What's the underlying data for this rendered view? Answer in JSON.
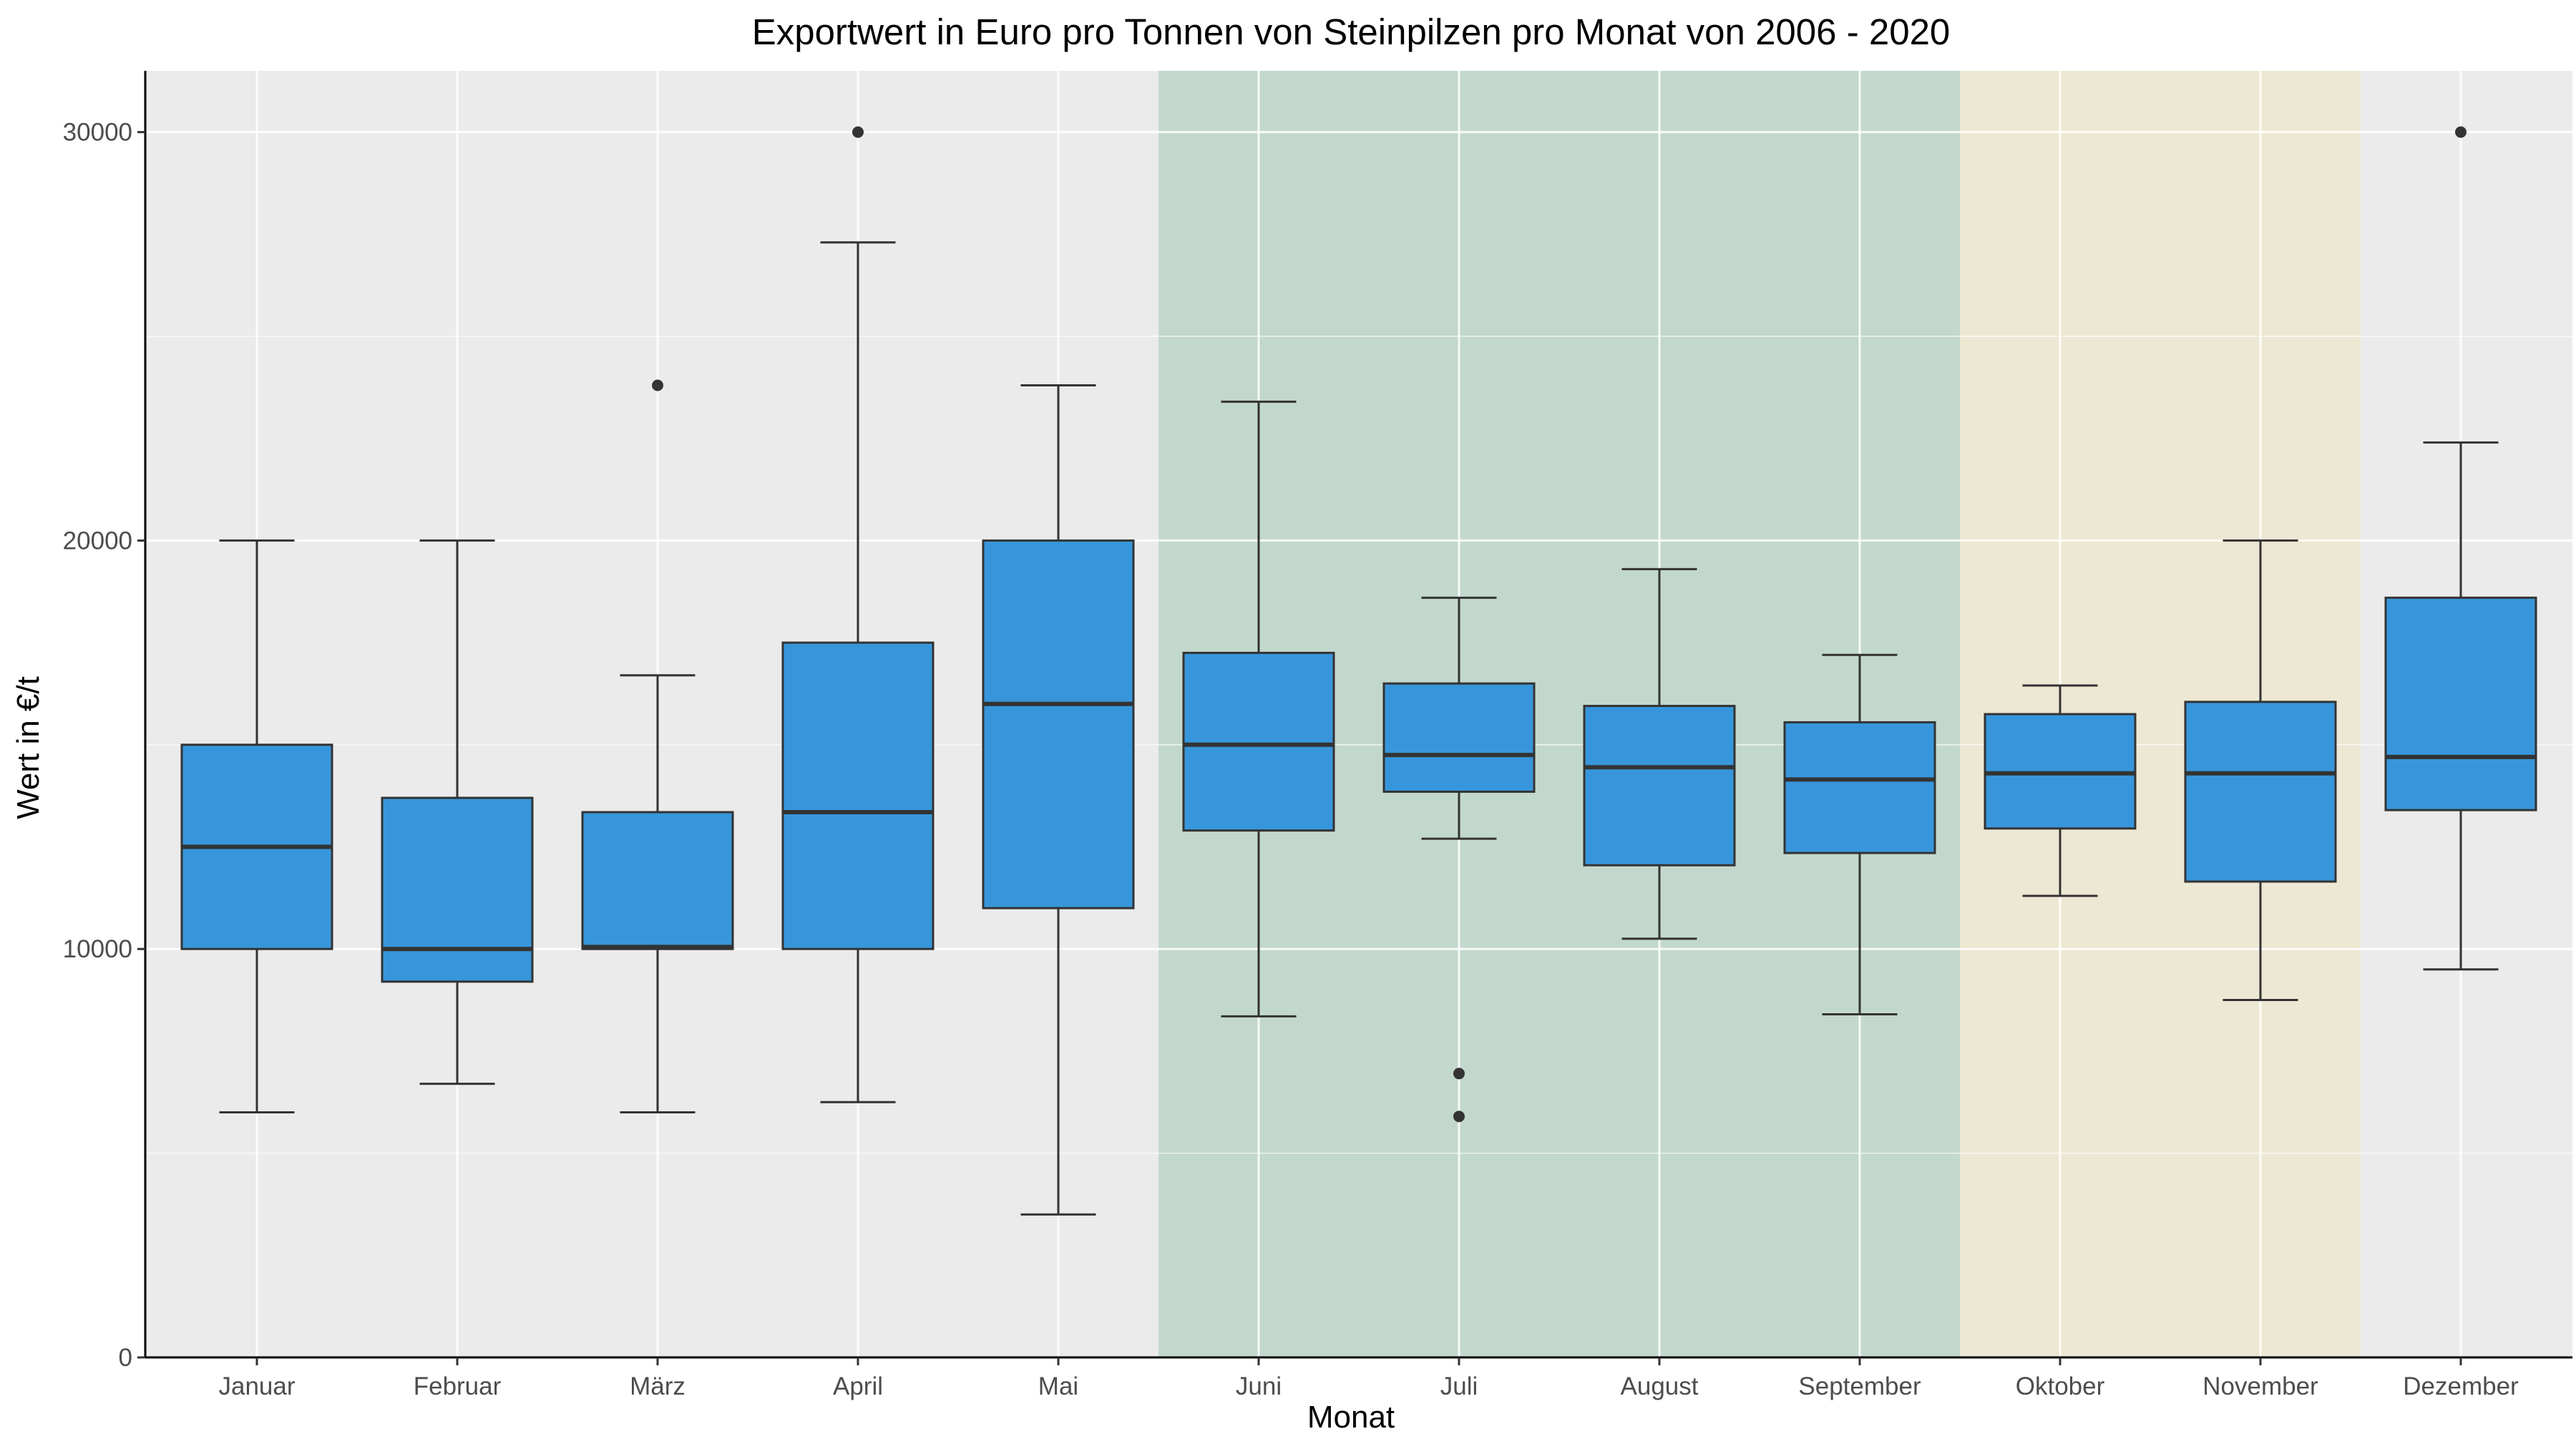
{
  "chart_data": {
    "type": "box",
    "title": "Exportwert in Euro pro Tonnen von Steinpilzen pro Monat von 2006 - 2020",
    "xlabel": "Monat",
    "ylabel": "Wert in €/t",
    "ylim": [
      0,
      31500
    ],
    "yticks": [
      0,
      10000,
      20000,
      30000
    ],
    "yticks_labels": [
      "0",
      "10000",
      "20000",
      "30000"
    ],
    "grid": true,
    "colors": {
      "box_fill": "#3796DB",
      "panel_bg": "#EBEBEB",
      "summer_band": "#C3D8CD",
      "autumn_band": "#EDE8D3",
      "gridline": "#FFFFFF",
      "outline": "#333333"
    },
    "highlight_bands": [
      {
        "from": "Juni",
        "to": "September",
        "color": "#C3D8CD"
      },
      {
        "from": "Oktober",
        "to": "November",
        "color": "#EDE8D3"
      }
    ],
    "categories": [
      "Januar",
      "Februar",
      "März",
      "April",
      "Mai",
      "Juni",
      "Juli",
      "August",
      "September",
      "Oktober",
      "November",
      "Dezember"
    ],
    "boxes": [
      {
        "min": 6000,
        "q1": 10000,
        "median": 12500,
        "q3": 15000,
        "max": 20000,
        "outliers": []
      },
      {
        "min": 6700,
        "q1": 9200,
        "median": 10000,
        "q3": 13700,
        "max": 20000,
        "outliers": []
      },
      {
        "min": 6000,
        "q1": 10000,
        "median": 10050,
        "q3": 13350,
        "max": 16700,
        "outliers": [
          23800
        ]
      },
      {
        "min": 6250,
        "q1": 10000,
        "median": 13350,
        "q3": 17500,
        "max": 27300,
        "outliers": [
          30000
        ]
      },
      {
        "min": 3500,
        "q1": 11000,
        "median": 16000,
        "q3": 20000,
        "max": 23800,
        "outliers": []
      },
      {
        "min": 8350,
        "q1": 12900,
        "median": 15000,
        "q3": 17250,
        "max": 23400,
        "outliers": []
      },
      {
        "min": 12700,
        "q1": 13850,
        "median": 14750,
        "q3": 16500,
        "max": 18600,
        "outliers": [
          6950,
          5900
        ]
      },
      {
        "min": 10250,
        "q1": 12050,
        "median": 14450,
        "q3": 15950,
        "max": 19300,
        "outliers": []
      },
      {
        "min": 8400,
        "q1": 12350,
        "median": 14150,
        "q3": 15550,
        "max": 17200,
        "outliers": []
      },
      {
        "min": 11300,
        "q1": 12950,
        "median": 14300,
        "q3": 15750,
        "max": 16450,
        "outliers": []
      },
      {
        "min": 8750,
        "q1": 11650,
        "median": 14300,
        "q3": 16050,
        "max": 20000,
        "outliers": []
      },
      {
        "min": 9500,
        "q1": 13400,
        "median": 14700,
        "q3": 18600,
        "max": 22400,
        "outliers": [
          30000
        ]
      }
    ]
  }
}
